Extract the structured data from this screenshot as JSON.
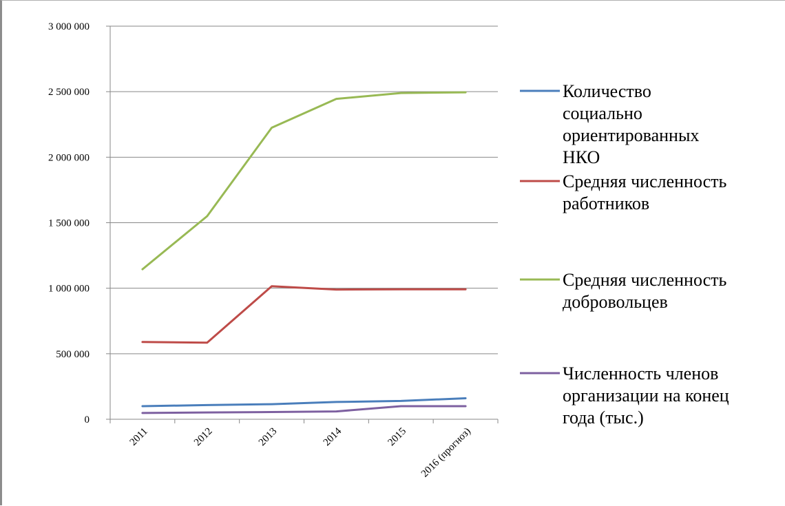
{
  "chart_data": {
    "type": "line",
    "categories": [
      "2011",
      "2012",
      "2013",
      "2014",
      "2015",
      "2016 (прогноз)"
    ],
    "ylim": [
      0,
      3000000
    ],
    "yticks": [
      {
        "value": 0,
        "label": "0"
      },
      {
        "value": 500000,
        "label": "500 000"
      },
      {
        "value": 1000000,
        "label": "1 000 000"
      },
      {
        "value": 1500000,
        "label": "1 500 000"
      },
      {
        "value": 2000000,
        "label": "2 000 000"
      },
      {
        "value": 2500000,
        "label": "2 500 000"
      },
      {
        "value": 3000000,
        "label": "3 000 000"
      }
    ],
    "grid": true,
    "legend_position": "right",
    "series": [
      {
        "name": "Количество социально ориентированных НКО",
        "legend_lines": [
          "Количество",
          "социально",
          "ориентированных",
          "НКО"
        ],
        "color": "#4a7ebb",
        "values": [
          100000,
          108000,
          115000,
          132000,
          140000,
          160000
        ]
      },
      {
        "name": "Средняя численность работников",
        "legend_lines": [
          "Средняя численность",
          "работников"
        ],
        "color": "#be4b48",
        "values": [
          590000,
          585000,
          1015000,
          990000,
          992000,
          992000
        ]
      },
      {
        "name": "Средняя численность добровольцев",
        "legend_lines": [
          "Средняя численность",
          "добровольцев"
        ],
        "color": "#98b954",
        "values": [
          1145000,
          1550000,
          2225000,
          2445000,
          2490000,
          2495000
        ]
      },
      {
        "name": "Численность членов организации на конец года (тыс.)",
        "legend_lines": [
          "Численность членов",
          "организации на конец",
          "года (тыс.)"
        ],
        "color": "#7d60a0",
        "values": [
          48000,
          52000,
          55000,
          60000,
          100000,
          100000
        ]
      }
    ]
  }
}
